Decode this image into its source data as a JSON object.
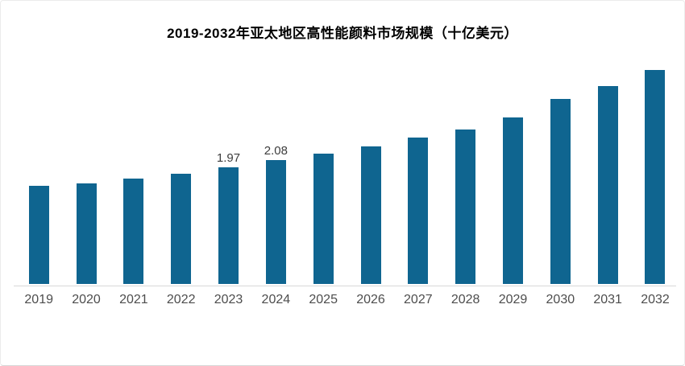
{
  "chart_data": {
    "type": "bar",
    "title": "2019-2032年亚太地区高性能颜料市场规模（十亿美元）",
    "categories": [
      "2019",
      "2020",
      "2021",
      "2022",
      "2023",
      "2024",
      "2025",
      "2026",
      "2027",
      "2028",
      "2029",
      "2030",
      "2031",
      "2032"
    ],
    "values": [
      1.65,
      1.69,
      1.77,
      1.86,
      1.97,
      2.08,
      2.2,
      2.32,
      2.46,
      2.6,
      2.81,
      3.12,
      3.33,
      3.61
    ],
    "data_labels": [
      "",
      "",
      "",
      "",
      "1.97",
      "2.08",
      "",
      "",
      "",
      "",
      "",
      "",
      "",
      ""
    ],
    "xlabel": "",
    "ylabel": "",
    "ylim": [
      0,
      3.8
    ],
    "grid": false,
    "legend": null,
    "colors": {
      "bar": "#0f6590",
      "axis_line": "#d9d9d9",
      "tick_text": "#4d4d4d",
      "label_text": "#3d3d3d",
      "title_text": "#000000",
      "background": "#ffffff"
    }
  }
}
